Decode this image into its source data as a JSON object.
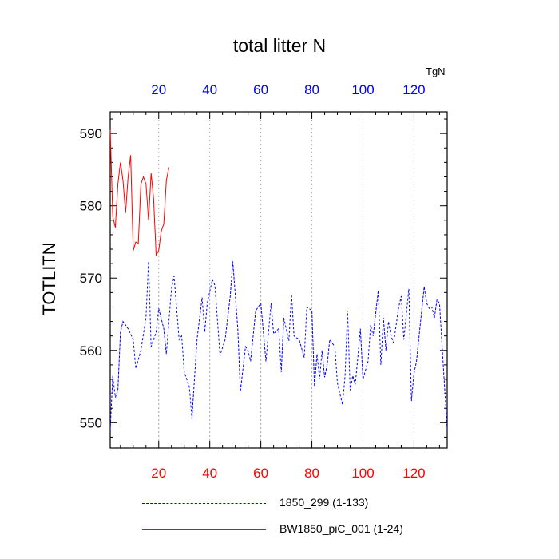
{
  "chart_data": {
    "type": "line",
    "title": "total litter N",
    "ylabel": "TOTLITN",
    "top_axis_label": "TgN",
    "xlim": [
      1,
      133
    ],
    "ylim": [
      546.5,
      593
    ],
    "x_ticks_top": [
      "20",
      "40",
      "60",
      "80",
      "100",
      "120"
    ],
    "x_ticks_bottom": [
      "20",
      "40",
      "60",
      "80",
      "100",
      "120"
    ],
    "y_ticks": [
      "550",
      "560",
      "570",
      "580",
      "590"
    ],
    "top_tick_color": "#0000ff",
    "bottom_tick_color": "#ff0000",
    "grid": "vertical dotted",
    "series": [
      {
        "name": "1850_299 (1-133)",
        "color": "#0000ff",
        "dash": "dashed",
        "axis": "bottom",
        "x_start": 1,
        "values": [
          549,
          556.5,
          553.5,
          554.5,
          562.5,
          564,
          563,
          561.5,
          557.5,
          560,
          564.5,
          572.3,
          560.5,
          562.5,
          565.8,
          563,
          559.5,
          568.5,
          570.3,
          561.5,
          562,
          557,
          556,
          555,
          550.5,
          561.5,
          567.3,
          562.5,
          566.5,
          569.8,
          569,
          559.3,
          561.5,
          567.5,
          572.3,
          563,
          554.3,
          560.5,
          560,
          558.5,
          565.5,
          566.5,
          562.5,
          558.5,
          566.5,
          562.3,
          563,
          557,
          564.5,
          561.3,
          567.8,
          562,
          561.5,
          559,
          566,
          565.5,
          555,
          559.5,
          556,
          560,
          556.3,
          558,
          561.5,
          560.5,
          555.5,
          552.5,
          556.5,
          565.5,
          554.5,
          556.5,
          555.3,
          559,
          563,
          556,
          558.5,
          563.5,
          562,
          568.3,
          558,
          564.5,
          560,
          564,
          562,
          561,
          566,
          567.5,
          561.5,
          568.5,
          553,
          556.8,
          558.5,
          562,
          568.8,
          566.5,
          565.8,
          566,
          564.5,
          567,
          566.5,
          549
        ],
        "note_x": [
          1,
          2,
          3,
          4,
          5,
          6,
          8,
          10,
          11,
          13,
          15,
          16,
          17,
          19,
          20,
          22,
          23,
          25,
          26,
          28,
          29,
          30,
          31,
          32,
          33,
          35,
          37,
          38,
          39,
          41,
          42,
          44,
          46,
          48,
          49,
          51,
          52,
          54,
          55,
          56,
          58,
          60,
          61,
          62,
          64,
          65,
          67,
          68,
          69,
          71,
          72,
          73,
          75,
          77,
          78,
          80,
          81,
          82,
          83,
          84,
          85,
          86,
          87,
          89,
          90,
          92,
          93,
          94,
          95,
          96,
          97,
          98,
          99,
          100,
          102,
          103,
          104,
          106,
          107,
          108,
          109,
          110,
          111,
          112,
          114,
          115,
          116,
          118,
          119,
          120,
          121,
          122,
          124,
          125,
          126,
          127,
          128,
          129,
          130,
          133
        ]
      },
      {
        "name": "BW1850_piC_001 (1-24)",
        "color": "#ff0000",
        "dash": "solid",
        "axis": "bottom",
        "x_start": 1,
        "values": [
          590.5,
          578.5,
          577,
          583,
          586,
          583.5,
          579,
          584,
          587,
          573.8,
          575,
          574.8,
          583,
          584,
          583,
          578,
          584.5,
          581,
          573.2,
          573.8,
          576.5,
          577.5,
          583.5,
          585.3
        ]
      }
    ]
  }
}
